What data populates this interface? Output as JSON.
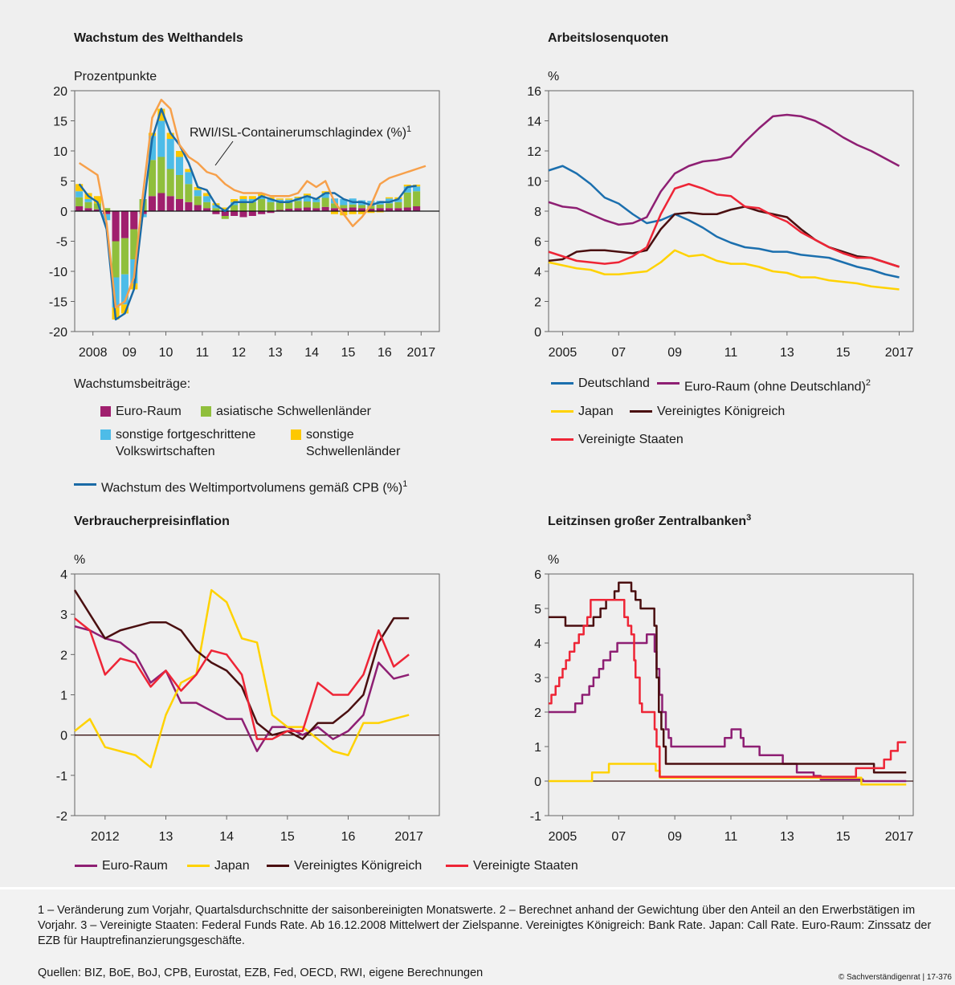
{
  "chart_data": [
    {
      "type": "bar",
      "title": "Wachstum des Welthandels",
      "y_label": "Prozentpunkte",
      "legend_title": "Wachstumsbeiträge:",
      "x": [
        2008.125,
        2008.375,
        2008.625,
        2008.875,
        2009.125,
        2009.375,
        2009.625,
        2009.875,
        2010.125,
        2010.375,
        2010.625,
        2010.875,
        2011.125,
        2011.375,
        2011.625,
        2011.875,
        2012.125,
        2012.375,
        2012.625,
        2012.875,
        2013.125,
        2013.375,
        2013.625,
        2013.875,
        2014.125,
        2014.375,
        2014.625,
        2014.875,
        2015.125,
        2015.375,
        2015.625,
        2015.875,
        2016.125,
        2016.375,
        2016.625,
        2016.875,
        2017.125,
        2017.375,
        2017.625
      ],
      "xlim": [
        2008,
        2018
      ],
      "xticks": [
        {
          "value": 2008.5,
          "label": "2008"
        },
        {
          "value": 2009.5,
          "label": "09"
        },
        {
          "value": 2010.5,
          "label": "10"
        },
        {
          "value": 2011.5,
          "label": "11"
        },
        {
          "value": 2012.5,
          "label": "12"
        },
        {
          "value": 2013.5,
          "label": "13"
        },
        {
          "value": 2014.5,
          "label": "14"
        },
        {
          "value": 2015.5,
          "label": "15"
        },
        {
          "value": 2016.5,
          "label": "16"
        },
        {
          "value": 2017.5,
          "label": "2017"
        }
      ],
      "ylim": [
        -20,
        20
      ],
      "yticks": [
        -20,
        -15,
        -10,
        -5,
        0,
        5,
        10,
        15,
        20
      ],
      "zero_line": true,
      "series": [
        {
          "name": "Euro-Raum",
          "type": "bar",
          "color": "#a01f6e",
          "values": [
            0.8,
            0.5,
            0.3,
            -0.5,
            -5,
            -4.5,
            -3,
            -0.5,
            2.5,
            3,
            2.5,
            2,
            1.5,
            1,
            0.5,
            -0.5,
            -0.8,
            -0.8,
            -1,
            -0.8,
            -0.5,
            -0.3,
            0.2,
            0.4,
            0.5,
            0.6,
            0.5,
            0.7,
            0.5,
            0.5,
            0.6,
            0.5,
            0.4,
            0.5,
            0.5,
            0.5,
            0.6,
            0.8,
            null
          ]
        },
        {
          "name": "asiatische Schwellenländer",
          "type": "bar",
          "color": "#90bf3c",
          "values": [
            1.5,
            1,
            1,
            0.5,
            -6,
            -6,
            -5,
            2,
            6,
            6,
            4.5,
            4,
            3,
            1.5,
            1,
            0.5,
            -0.5,
            1,
            1.5,
            1.5,
            2,
            1.5,
            1.2,
            1,
            1.2,
            1,
            1,
            1.5,
            0.8,
            0.5,
            0.5,
            0.5,
            0.5,
            0.6,
            0.8,
            1,
            2.5,
            2.5,
            null
          ]
        },
        {
          "name": "sonstige fortgeschrittene Volkswirtschaften",
          "type": "bar",
          "color": "#4dbce8",
          "values": [
            1,
            0.5,
            0,
            -1,
            -5,
            -5,
            -4,
            -0.5,
            4,
            6,
            5,
            3,
            2,
            1,
            1,
            0.5,
            0.3,
            0.5,
            0.5,
            0.5,
            0.5,
            0.5,
            0.5,
            0.5,
            0.5,
            1,
            0.5,
            0.8,
            0.8,
            1,
            1,
            0.8,
            0.8,
            0.6,
            0.8,
            0.5,
            1,
            0.8,
            null
          ]
        },
        {
          "name": "sonstige Schwellenländer",
          "type": "bar",
          "color": "#fdc800",
          "values": [
            1.2,
            1,
            1.2,
            0,
            -2,
            -1.5,
            -1,
            0,
            0.5,
            2,
            1,
            1,
            0.5,
            0.5,
            0.5,
            0.3,
            0.3,
            0.5,
            0.5,
            0.5,
            0.5,
            0.3,
            0.2,
            0.2,
            0.2,
            0.3,
            0.2,
            0.3,
            -0.5,
            -0.7,
            -0.5,
            -0.5,
            -0.3,
            -0.2,
            0.2,
            0.3,
            0.3,
            0.3,
            null
          ]
        },
        {
          "name": "Wachstum des Weltimportvolumens gemäß CPB (%)",
          "note": "1",
          "type": "line",
          "color": "#1a6aa6",
          "values": [
            4.5,
            2.5,
            1.5,
            -3,
            -18,
            -17,
            -13,
            0,
            12,
            17,
            13,
            11,
            8,
            4,
            3.5,
            1,
            0,
            1.5,
            1.5,
            1.5,
            2.5,
            2,
            1.5,
            1.5,
            2,
            2.5,
            2,
            3,
            3,
            2,
            1.5,
            1.5,
            1,
            1.5,
            1.5,
            2,
            4,
            4.2,
            null
          ]
        },
        {
          "name": "RWI/ISL-Containerumschlagindex (%)",
          "note": "1",
          "type": "line",
          "color": "#f7a04a",
          "values": [
            8,
            7,
            6,
            -2,
            -16,
            -15,
            -11,
            3,
            15.5,
            18.5,
            17,
            11,
            9,
            8,
            6.5,
            6,
            4.5,
            3.5,
            3,
            3,
            3,
            2.5,
            2.5,
            2.5,
            3,
            5,
            4,
            5,
            1.5,
            -0.5,
            -2.5,
            -1,
            1,
            4.5,
            5.5,
            6,
            6.5,
            7,
            7.5
          ]
        }
      ]
    },
    {
      "type": "line",
      "title": "Arbeitslosenquoten",
      "y_label": "%",
      "x": [
        2005,
        2005.5,
        2006,
        2006.5,
        2007,
        2007.5,
        2008,
        2008.5,
        2009,
        2009.5,
        2010,
        2010.5,
        2011,
        2011.5,
        2012,
        2012.5,
        2013,
        2013.5,
        2014,
        2014.5,
        2015,
        2015.5,
        2016,
        2016.5,
        2017,
        2017.5
      ],
      "xlim": [
        2005,
        2018
      ],
      "xticks": [
        {
          "value": 2005.5,
          "label": "2005"
        },
        {
          "value": 2007.5,
          "label": "07"
        },
        {
          "value": 2009.5,
          "label": "09"
        },
        {
          "value": 2011.5,
          "label": "11"
        },
        {
          "value": 2013.5,
          "label": "13"
        },
        {
          "value": 2015.5,
          "label": "15"
        },
        {
          "value": 2017.5,
          "label": "2017"
        }
      ],
      "ylim": [
        0,
        16
      ],
      "yticks": [
        0,
        2,
        4,
        6,
        8,
        10,
        12,
        14,
        16
      ],
      "series": [
        {
          "name": "Deutschland",
          "color": "#1b6fae",
          "values": [
            10.7,
            11.0,
            10.5,
            9.8,
            8.9,
            8.5,
            7.8,
            7.2,
            7.4,
            7.8,
            7.4,
            6.9,
            6.3,
            5.9,
            5.6,
            5.5,
            5.3,
            5.3,
            5.1,
            5.0,
            4.9,
            4.6,
            4.3,
            4.1,
            3.8,
            3.6
          ]
        },
        {
          "name": "Euro-Raum (ohne Deutschland)",
          "note": "2",
          "color": "#8e1f73",
          "values": [
            8.6,
            8.3,
            8.2,
            7.8,
            7.4,
            7.1,
            7.2,
            7.6,
            9.3,
            10.5,
            11.0,
            11.3,
            11.4,
            11.6,
            12.6,
            13.5,
            14.3,
            14.4,
            14.3,
            14.0,
            13.5,
            12.9,
            12.4,
            12.0,
            11.5,
            11.0
          ]
        },
        {
          "name": "Japan",
          "color": "#ffd200",
          "values": [
            4.6,
            4.4,
            4.2,
            4.1,
            3.8,
            3.8,
            3.9,
            4.0,
            4.6,
            5.4,
            5.0,
            5.1,
            4.7,
            4.5,
            4.5,
            4.3,
            4.0,
            3.9,
            3.6,
            3.6,
            3.4,
            3.3,
            3.2,
            3.0,
            2.9,
            2.8
          ]
        },
        {
          "name": "Vereinigtes Königreich",
          "color": "#4a0f10",
          "values": [
            4.7,
            4.8,
            5.3,
            5.4,
            5.4,
            5.3,
            5.2,
            5.4,
            6.8,
            7.8,
            7.9,
            7.8,
            7.8,
            8.1,
            8.3,
            8.0,
            7.8,
            7.6,
            6.8,
            6.1,
            5.6,
            5.3,
            5.0,
            4.9,
            4.6,
            4.3
          ]
        },
        {
          "name": "Vereinigte Staaten",
          "color": "#ee2536",
          "values": [
            5.3,
            5.0,
            4.7,
            4.6,
            4.5,
            4.6,
            5.0,
            5.6,
            7.8,
            9.5,
            9.8,
            9.5,
            9.1,
            9.0,
            8.3,
            8.2,
            7.7,
            7.3,
            6.6,
            6.1,
            5.6,
            5.2,
            4.9,
            4.9,
            4.6,
            4.3
          ]
        }
      ]
    },
    {
      "type": "line",
      "title": "Verbraucherpreisinflation",
      "y_label": "%",
      "x": [
        2012,
        2012.25,
        2012.5,
        2012.75,
        2013,
        2013.25,
        2013.5,
        2013.75,
        2014,
        2014.25,
        2014.5,
        2014.75,
        2015,
        2015.25,
        2015.5,
        2015.75,
        2016,
        2016.25,
        2016.5,
        2016.75,
        2017,
        2017.25,
        2017.5
      ],
      "xlim": [
        2012,
        2018
      ],
      "xticks": [
        {
          "value": 2012.5,
          "label": "2012"
        },
        {
          "value": 2013.5,
          "label": "13"
        },
        {
          "value": 2014.5,
          "label": "14"
        },
        {
          "value": 2015.5,
          "label": "15"
        },
        {
          "value": 2016.5,
          "label": "16"
        },
        {
          "value": 2017.5,
          "label": "2017"
        }
      ],
      "ylim": [
        -2,
        4
      ],
      "yticks": [
        -2,
        -1,
        0,
        1,
        2,
        3,
        4
      ],
      "zero_line": true,
      "series": [
        {
          "name": "Euro-Raum",
          "color": "#8e1f73",
          "values": [
            2.7,
            2.6,
            2.4,
            2.3,
            2.0,
            1.3,
            1.6,
            0.8,
            0.8,
            0.6,
            0.4,
            0.4,
            -0.4,
            0.2,
            0.2,
            0.0,
            0.2,
            -0.1,
            0.1,
            0.5,
            1.8,
            1.4,
            1.5
          ]
        },
        {
          "name": "Japan",
          "color": "#ffd200",
          "values": [
            0.1,
            0.4,
            -0.3,
            -0.4,
            -0.5,
            -0.8,
            0.5,
            1.3,
            1.5,
            3.6,
            3.3,
            2.4,
            2.3,
            0.5,
            0.2,
            0.2,
            -0.1,
            -0.4,
            -0.5,
            0.3,
            0.3,
            0.4,
            0.5
          ]
        },
        {
          "name": "Vereinigtes Königreich",
          "color": "#4a0f10",
          "values": [
            3.6,
            3.0,
            2.4,
            2.6,
            2.7,
            2.8,
            2.8,
            2.6,
            2.1,
            1.8,
            1.6,
            1.2,
            0.3,
            0.0,
            0.1,
            -0.1,
            0.3,
            0.3,
            0.6,
            1.0,
            2.3,
            2.9,
            2.9
          ]
        },
        {
          "name": "Vereinigte Staaten",
          "color": "#ee2536",
          "values": [
            2.9,
            2.6,
            1.5,
            1.9,
            1.8,
            1.2,
            1.6,
            1.1,
            1.5,
            2.1,
            2.0,
            1.5,
            -0.1,
            -0.1,
            0.1,
            0.1,
            1.3,
            1.0,
            1.0,
            1.5,
            2.6,
            1.7,
            2.0
          ]
        }
      ]
    },
    {
      "type": "line",
      "step": true,
      "title": "Leitzinsen großer Zentralbanken",
      "title_note": "3",
      "y_label": "%",
      "xlim": [
        2005,
        2018
      ],
      "xticks": [
        {
          "value": 2005.5,
          "label": "2005"
        },
        {
          "value": 2007.5,
          "label": "07"
        },
        {
          "value": 2009.5,
          "label": "09"
        },
        {
          "value": 2011.5,
          "label": "11"
        },
        {
          "value": 2013.5,
          "label": "13"
        },
        {
          "value": 2015.5,
          "label": "15"
        },
        {
          "value": 2017.5,
          "label": "2017"
        }
      ],
      "ylim": [
        -1,
        6
      ],
      "yticks": [
        -1,
        0,
        1,
        2,
        3,
        4,
        5,
        6
      ],
      "zero_line": true,
      "series": [
        {
          "color": "#8e1f73",
          "x": [
            2005,
            2005.95,
            2006.2,
            2006.45,
            2006.6,
            2006.8,
            2006.95,
            2007.2,
            2007.45,
            2008.5,
            2008.78,
            2008.85,
            2008.95,
            2009.05,
            2009.18,
            2009.28,
            2009.37,
            2011.28,
            2011.52,
            2011.85,
            2011.95,
            2012.52,
            2013.35,
            2013.85,
            2014.45,
            2014.7,
            2016.2,
            2017.75
          ],
          "values": [
            2,
            2.25,
            2.5,
            2.75,
            3,
            3.25,
            3.5,
            3.75,
            4,
            4.25,
            3.75,
            3.25,
            2.5,
            2,
            1.5,
            1.25,
            1,
            1.25,
            1.5,
            1.25,
            1,
            0.75,
            0.5,
            0.25,
            0.15,
            0.05,
            0,
            0
          ]
        },
        {
          "color": "#ffd200",
          "x": [
            2005,
            2006.55,
            2007.15,
            2008.82,
            2008.97,
            2016.15,
            2017.75
          ],
          "values": [
            0,
            0.25,
            0.5,
            0.3,
            0.1,
            -0.1,
            -0.1
          ]
        },
        {
          "color": "#4a0f10",
          "x": [
            2005,
            2005.6,
            2006.6,
            2006.85,
            2007.05,
            2007.35,
            2007.5,
            2007.95,
            2008.1,
            2008.28,
            2008.77,
            2008.85,
            2008.93,
            2009.02,
            2009.1,
            2009.18,
            2016.6,
            2017.75
          ],
          "values": [
            4.75,
            4.5,
            4.75,
            5,
            5.25,
            5.5,
            5.75,
            5.5,
            5.25,
            5,
            4.5,
            3,
            2,
            1.5,
            1,
            0.5,
            0.25,
            0.25
          ]
        },
        {
          "color": "#ee2536",
          "x": [
            2005,
            2005.1,
            2005.25,
            2005.38,
            2005.5,
            2005.62,
            2005.75,
            2005.92,
            2006.08,
            2006.25,
            2006.38,
            2006.5,
            2007.7,
            2007.83,
            2007.95,
            2008.05,
            2008.1,
            2008.25,
            2008.33,
            2008.78,
            2008.85,
            2008.96,
            2015.96,
            2016.96,
            2017.2,
            2017.45,
            2017.75
          ],
          "values": [
            2.25,
            2.5,
            2.75,
            3,
            3.25,
            3.5,
            3.75,
            4,
            4.25,
            4.5,
            4.75,
            5.25,
            4.75,
            4.5,
            4.25,
            3.5,
            3,
            2.25,
            2,
            1.5,
            1,
            0.125,
            0.375,
            0.625,
            0.875,
            1.125,
            1.125
          ]
        }
      ]
    }
  ],
  "footnote": "1 – Veränderung zum Vorjahr, Quartalsdurchschnitte der saisonbereinigten Monatswerte. 2 – Berechnet anhand der Gewichtung über den Anteil an den Erwerbstätigen im Vorjahr. 3 – Vereinigte Staaten: Federal Funds Rate. Ab 16.12.2008 Mittelwert der Zielspanne. Vereinigtes Königreich: Bank Rate. Japan: Call Rate. Euro-Raum: Zinssatz der EZB für Hauptrefinanzierungsgeschäfte.",
  "sources": "Quellen: BIZ, BoE, BoJ, CPB, Eurostat, EZB, Fed, OECD, RWI, eigene Berechnungen",
  "copyright": "© Sachverständigenrat | 17-376"
}
